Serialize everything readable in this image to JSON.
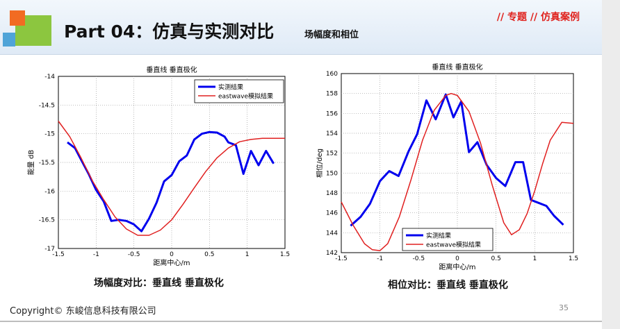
{
  "header": {
    "title": "Part 04：仿真与实测对比",
    "subtitle": "场幅度和相位",
    "tag": "// 专题 // 仿真案例"
  },
  "footer": {
    "copyright": "Copyright© 东峻信息科技有限公司",
    "page_number": "35"
  },
  "captions": {
    "left": "场幅度对比：垂直线 垂直极化",
    "right": "相位对比：垂直线 垂直极化"
  },
  "colors": {
    "measured": "#0000ee",
    "simulated": "#e02020",
    "accent": "#e0201b"
  },
  "chart_data": [
    {
      "type": "line",
      "title": "垂直线 垂直极化",
      "xlabel": "距离中心/m",
      "ylabel": "能量 dB",
      "xlim": [
        -1.5,
        1.5
      ],
      "ylim": [
        -17,
        -14
      ],
      "xticks": [
        "-1.5",
        "-1",
        "-0.5",
        "0",
        "0.5",
        "1",
        "1.5"
      ],
      "yticks": [
        "-14",
        "-14.5",
        "-15",
        "-15.5",
        "-16",
        "-16.5",
        "-17"
      ],
      "xtick_values": [
        -1.5,
        -1,
        -0.5,
        0,
        0.5,
        1,
        1.5
      ],
      "ytick_values": [
        -14,
        -14.5,
        -15,
        -15.5,
        -16,
        -16.5,
        -17
      ],
      "grid": true,
      "legend_position": "top-right",
      "series": [
        {
          "name": "实测结果",
          "color": "#0000ee",
          "width": 3,
          "x": [
            -1.38,
            -1.28,
            -1.2,
            -1.1,
            -1.0,
            -0.9,
            -0.8,
            -0.7,
            -0.6,
            -0.5,
            -0.4,
            -0.3,
            -0.2,
            -0.1,
            0.0,
            0.1,
            0.2,
            0.3,
            0.4,
            0.5,
            0.6,
            0.7,
            0.75,
            0.85,
            0.95,
            1.05,
            1.15,
            1.25,
            1.35
          ],
          "y": [
            -15.15,
            -15.25,
            -15.45,
            -15.7,
            -15.98,
            -16.18,
            -16.52,
            -16.5,
            -16.52,
            -16.58,
            -16.7,
            -16.48,
            -16.2,
            -15.83,
            -15.72,
            -15.48,
            -15.38,
            -15.1,
            -15.0,
            -14.97,
            -14.98,
            -15.05,
            -15.15,
            -15.2,
            -15.7,
            -15.3,
            -15.55,
            -15.3,
            -15.52
          ]
        },
        {
          "name": "eastwave模拟结果",
          "color": "#e02020",
          "width": 1.5,
          "x": [
            -1.5,
            -1.35,
            -1.2,
            -1.05,
            -0.9,
            -0.75,
            -0.6,
            -0.45,
            -0.3,
            -0.15,
            0.0,
            0.15,
            0.3,
            0.45,
            0.6,
            0.75,
            0.9,
            1.05,
            1.2,
            1.35,
            1.5
          ],
          "y": [
            -14.78,
            -15.05,
            -15.42,
            -15.82,
            -16.15,
            -16.45,
            -16.66,
            -16.77,
            -16.77,
            -16.68,
            -16.5,
            -16.23,
            -15.94,
            -15.66,
            -15.42,
            -15.25,
            -15.14,
            -15.1,
            -15.08,
            -15.08,
            -15.08
          ]
        }
      ]
    },
    {
      "type": "line",
      "title": "垂直线 垂直极化",
      "xlabel": "距离中心/m",
      "ylabel": "相位/deg",
      "xlim": [
        -1.5,
        1.5
      ],
      "ylim": [
        142,
        160
      ],
      "xticks": [
        "-1.5",
        "-1",
        "-0.5",
        "0",
        "0.5",
        "1",
        "1.5"
      ],
      "yticks": [
        "142",
        "144",
        "146",
        "148",
        "150",
        "152",
        "154",
        "156",
        "158",
        "160"
      ],
      "xtick_values": [
        -1.5,
        -1,
        -0.5,
        0,
        0.5,
        1,
        1.5
      ],
      "ytick_values": [
        142,
        144,
        146,
        148,
        150,
        152,
        154,
        156,
        158,
        160
      ],
      "grid": true,
      "legend_position": "bottom-left",
      "series": [
        {
          "name": "实测结果",
          "color": "#0000ee",
          "width": 3,
          "x": [
            -1.38,
            -1.25,
            -1.13,
            -1.0,
            -0.88,
            -0.76,
            -0.63,
            -0.52,
            -0.4,
            -0.28,
            -0.15,
            -0.05,
            0.05,
            0.15,
            0.26,
            0.38,
            0.5,
            0.62,
            0.75,
            0.85,
            0.95,
            1.05,
            1.15,
            1.25,
            1.37
          ],
          "y": [
            144.7,
            145.6,
            146.9,
            149.2,
            150.2,
            149.7,
            152.2,
            153.9,
            157.3,
            155.4,
            157.9,
            155.6,
            157.2,
            152.1,
            153.1,
            150.8,
            149.5,
            148.7,
            151.1,
            151.1,
            147.3,
            147.0,
            146.7,
            145.7,
            144.8
          ]
        },
        {
          "name": "eastwave模拟结果",
          "color": "#e02020",
          "width": 1.5,
          "x": [
            -1.5,
            -1.35,
            -1.2,
            -1.1,
            -1.0,
            -0.9,
            -0.75,
            -0.6,
            -0.45,
            -0.3,
            -0.15,
            -0.08,
            0.0,
            0.15,
            0.3,
            0.45,
            0.6,
            0.7,
            0.8,
            0.9,
            1.0,
            1.1,
            1.2,
            1.35,
            1.5
          ],
          "y": [
            147.1,
            144.8,
            142.9,
            142.3,
            142.2,
            142.9,
            145.6,
            149.3,
            153.3,
            156.3,
            157.8,
            158.0,
            157.8,
            156.2,
            153.0,
            148.8,
            145.0,
            143.8,
            144.3,
            145.9,
            148.2,
            150.9,
            153.3,
            155.1,
            155.0
          ]
        }
      ]
    }
  ]
}
